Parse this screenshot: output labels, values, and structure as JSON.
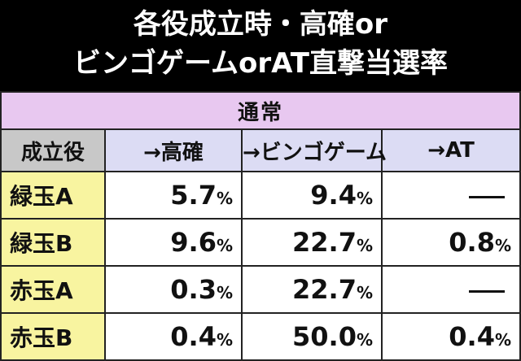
{
  "title": {
    "line1": "各役成立時・高確or",
    "line2": "ビンゴゲームorAT直撃当選率"
  },
  "table": {
    "section_label": "通常",
    "corner_label": "成立役",
    "columns": [
      "→高確",
      "→ビンゴゲーム",
      "→AT"
    ],
    "percent_unit": "%",
    "rows": [
      {
        "label": "緑玉A",
        "values": [
          "5.7",
          "9.4",
          null
        ]
      },
      {
        "label": "緑玉B",
        "values": [
          "9.6",
          "22.7",
          "0.8"
        ]
      },
      {
        "label": "赤玉A",
        "values": [
          "0.3",
          "22.7",
          null
        ]
      },
      {
        "label": "赤玉B",
        "values": [
          "0.4",
          "50.0",
          "0.4"
        ]
      }
    ]
  },
  "colors": {
    "section_bg": "#e8c8f0",
    "header_bg": "#dcdcf4",
    "corner_bg": "#c8c8c8",
    "row_label_bg": "#f8f4a0",
    "title_bg": "#000000"
  }
}
